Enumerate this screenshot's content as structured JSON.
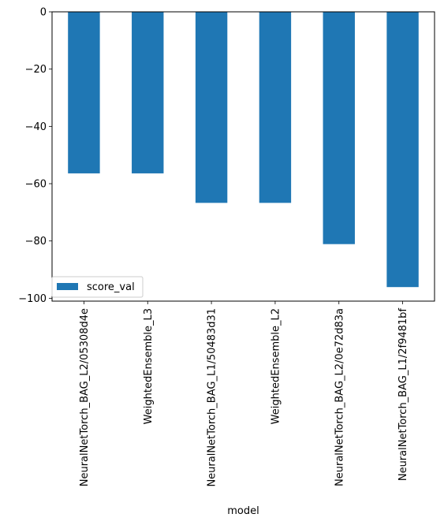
{
  "chart_data": {
    "type": "bar",
    "title": "",
    "xlabel": "model",
    "ylabel": "",
    "categories": [
      "NeuralNetTorch_BAG_L2/05308d4e",
      "WeightedEnsemble_L3",
      "NeuralNetTorch_BAG_L1/50483d31",
      "WeightedEnsemble_L2",
      "NeuralNetTorch_BAG_L2/0e72d83a",
      "NeuralNetTorch_BAG_L1/2f9481bf"
    ],
    "series": [
      {
        "name": "score_val",
        "values": [
          -56.4,
          -56.4,
          -66.7,
          -66.7,
          -81.1,
          -96.1
        ],
        "color": "#1f77b4"
      }
    ],
    "ylim": [
      -101,
      0
    ],
    "yticks": [
      0,
      -20,
      -40,
      -60,
      -80,
      -100
    ],
    "ytick_labels": [
      "0",
      "−20",
      "−40",
      "−60",
      "−80",
      "−100"
    ],
    "grid": false,
    "legend_position": "lower-left"
  }
}
